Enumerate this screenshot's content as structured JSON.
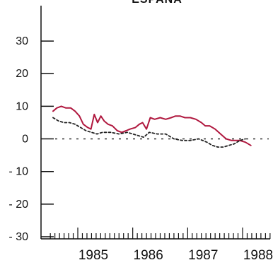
{
  "chart_data": {
    "type": "line",
    "title": "ESPAÑA",
    "xlabel": "",
    "ylabel": "",
    "ylim": [
      -30,
      35
    ],
    "xlim": [
      1984.55,
      1988.75
    ],
    "y_ticks": [
      30,
      20,
      10,
      0,
      -10,
      -20,
      -30
    ],
    "y_tick_labels": [
      "30",
      "20",
      "10",
      "0",
      "- 10",
      "- 20",
      "- 30"
    ],
    "x_ticks": [
      1985,
      1986,
      1987,
      1988
    ],
    "x_tick_labels": [
      "1985",
      "1986",
      "1987",
      "1988"
    ],
    "reference_line": {
      "y": 0,
      "style": "dashed"
    },
    "series": [
      {
        "color": "#b0183f",
        "style": "solid",
        "x": [
          1984.55,
          1984.62,
          1984.7,
          1984.78,
          1984.87,
          1984.95,
          1985.03,
          1985.1,
          1985.18,
          1985.24,
          1985.3,
          1985.36,
          1985.42,
          1985.48,
          1985.55,
          1985.63,
          1985.72,
          1985.8,
          1985.88,
          1985.95,
          1986.05,
          1986.12,
          1986.18,
          1986.25,
          1986.32,
          1986.4,
          1986.5,
          1986.6,
          1986.7,
          1986.78,
          1986.86,
          1986.95,
          1987.05,
          1987.15,
          1987.25,
          1987.32,
          1987.4,
          1987.5,
          1987.6,
          1987.7,
          1987.8,
          1987.88,
          1987.95,
          1988.05,
          1988.15
        ],
        "values": [
          8.5,
          9.5,
          10,
          9.5,
          9.5,
          8.5,
          7,
          4.5,
          3.5,
          3,
          7.5,
          5,
          7,
          5.5,
          4.5,
          4,
          2.5,
          2,
          2.5,
          3,
          3.5,
          4.5,
          5,
          3,
          6.5,
          6,
          6.5,
          6,
          6.5,
          7,
          7,
          6.5,
          6.5,
          6,
          5,
          4,
          4,
          3,
          1.5,
          0,
          -0.5,
          -0.5,
          -0.5,
          -1,
          -2
        ]
      },
      {
        "color": "#222222",
        "style": "dotted",
        "x": [
          1984.55,
          1984.65,
          1984.75,
          1984.85,
          1984.95,
          1985.05,
          1985.15,
          1985.25,
          1985.35,
          1985.45,
          1985.6,
          1985.75,
          1985.9,
          1986.0,
          1986.1,
          1986.2,
          1986.3,
          1986.45,
          1986.6,
          1986.75,
          1986.9,
          1987.05,
          1987.2,
          1987.35,
          1987.45,
          1987.55,
          1987.65,
          1987.75,
          1987.85,
          1987.95,
          1988.05
        ],
        "values": [
          6.5,
          5.5,
          5,
          5,
          4.5,
          3.5,
          2.5,
          2,
          1.5,
          2,
          2,
          1.5,
          2,
          1.5,
          1,
          0.5,
          2,
          1.5,
          1.5,
          0,
          -0.5,
          -0.5,
          0,
          -1,
          -2,
          -2.5,
          -2.5,
          -2,
          -1.5,
          -0.5,
          0
        ]
      }
    ],
    "grid": false,
    "legend": "none"
  }
}
